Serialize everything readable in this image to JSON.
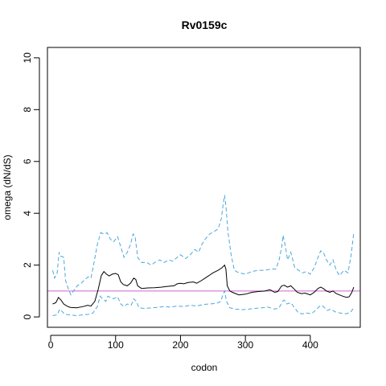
{
  "chart_data": {
    "type": "line",
    "title": "Rv0159c",
    "xlabel": "codon",
    "ylabel": "omega (dN/dS)",
    "xlim": [
      -5,
      477
    ],
    "ylim": [
      -0.4,
      10.4
    ],
    "x_ticks": [
      0,
      100,
      200,
      300,
      400
    ],
    "x_tick_labels": [
      "0",
      "100",
      "200",
      "300",
      "400"
    ],
    "y_ticks": [
      0,
      2,
      4,
      6,
      8,
      10
    ],
    "y_tick_labels": [
      "0",
      "2",
      "4",
      "6",
      "8",
      "10"
    ],
    "grid": false,
    "reference_line": {
      "y": 1.0,
      "color": "#cc66cc"
    },
    "series": [
      {
        "style": "solid",
        "color": "#000000",
        "points": [
          [
            3,
            0.5
          ],
          [
            8,
            0.55
          ],
          [
            12,
            0.75
          ],
          [
            16,
            0.65
          ],
          [
            20,
            0.5
          ],
          [
            25,
            0.42
          ],
          [
            30,
            0.37
          ],
          [
            40,
            0.35
          ],
          [
            50,
            0.4
          ],
          [
            57,
            0.45
          ],
          [
            62,
            0.42
          ],
          [
            68,
            0.6
          ],
          [
            73,
            1.05
          ],
          [
            78,
            1.6
          ],
          [
            82,
            1.75
          ],
          [
            86,
            1.65
          ],
          [
            90,
            1.58
          ],
          [
            95,
            1.65
          ],
          [
            100,
            1.68
          ],
          [
            104,
            1.63
          ],
          [
            108,
            1.35
          ],
          [
            112,
            1.25
          ],
          [
            118,
            1.2
          ],
          [
            123,
            1.3
          ],
          [
            128,
            1.5
          ],
          [
            131,
            1.45
          ],
          [
            134,
            1.2
          ],
          [
            140,
            1.1
          ],
          [
            150,
            1.12
          ],
          [
            160,
            1.13
          ],
          [
            170,
            1.15
          ],
          [
            180,
            1.18
          ],
          [
            190,
            1.2
          ],
          [
            195,
            1.28
          ],
          [
            200,
            1.3
          ],
          [
            205,
            1.28
          ],
          [
            212,
            1.33
          ],
          [
            220,
            1.35
          ],
          [
            225,
            1.3
          ],
          [
            232,
            1.4
          ],
          [
            238,
            1.5
          ],
          [
            244,
            1.6
          ],
          [
            250,
            1.7
          ],
          [
            258,
            1.8
          ],
          [
            264,
            1.9
          ],
          [
            268,
            2.0
          ],
          [
            270,
            1.85
          ],
          [
            272,
            1.2
          ],
          [
            276,
            1.0
          ],
          [
            280,
            0.95
          ],
          [
            285,
            0.9
          ],
          [
            290,
            0.85
          ],
          [
            300,
            0.88
          ],
          [
            310,
            0.95
          ],
          [
            320,
            0.98
          ],
          [
            330,
            1.0
          ],
          [
            338,
            1.05
          ],
          [
            345,
            0.95
          ],
          [
            350,
            0.98
          ],
          [
            356,
            1.2
          ],
          [
            360,
            1.22
          ],
          [
            365,
            1.15
          ],
          [
            370,
            1.2
          ],
          [
            375,
            1.08
          ],
          [
            380,
            0.95
          ],
          [
            386,
            0.9
          ],
          [
            392,
            0.92
          ],
          [
            400,
            0.85
          ],
          [
            406,
            0.95
          ],
          [
            412,
            1.1
          ],
          [
            416,
            1.15
          ],
          [
            420,
            1.1
          ],
          [
            425,
            1.0
          ],
          [
            430,
            0.95
          ],
          [
            435,
            1.0
          ],
          [
            440,
            0.9
          ],
          [
            450,
            0.8
          ],
          [
            456,
            0.75
          ],
          [
            460,
            0.78
          ],
          [
            464,
            0.95
          ],
          [
            467,
            1.15
          ]
        ]
      },
      {
        "style": "dashed",
        "color": "#4ba8dc",
        "points": [
          [
            3,
            1.8
          ],
          [
            6,
            1.5
          ],
          [
            10,
            1.7
          ],
          [
            13,
            2.5
          ],
          [
            15,
            2.35
          ],
          [
            20,
            2.3
          ],
          [
            23,
            1.4
          ],
          [
            27,
            1.1
          ],
          [
            31,
            0.85
          ],
          [
            35,
            1.0
          ],
          [
            41,
            1.2
          ],
          [
            47,
            1.3
          ],
          [
            53,
            1.45
          ],
          [
            58,
            1.55
          ],
          [
            62,
            1.5
          ],
          [
            66,
            2.0
          ],
          [
            72,
            2.8
          ],
          [
            77,
            3.25
          ],
          [
            83,
            3.2
          ],
          [
            87,
            3.25
          ],
          [
            92,
            3.0
          ],
          [
            97,
            2.9
          ],
          [
            103,
            3.1
          ],
          [
            108,
            2.7
          ],
          [
            113,
            2.3
          ],
          [
            118,
            2.5
          ],
          [
            123,
            2.8
          ],
          [
            127,
            3.2
          ],
          [
            130,
            3.1
          ],
          [
            134,
            2.3
          ],
          [
            140,
            2.1
          ],
          [
            148,
            2.1
          ],
          [
            155,
            2.0
          ],
          [
            160,
            2.1
          ],
          [
            168,
            2.2
          ],
          [
            175,
            2.1
          ],
          [
            182,
            2.2
          ],
          [
            188,
            2.15
          ],
          [
            195,
            2.3
          ],
          [
            200,
            2.4
          ],
          [
            208,
            2.25
          ],
          [
            215,
            2.4
          ],
          [
            222,
            2.6
          ],
          [
            228,
            2.5
          ],
          [
            233,
            2.8
          ],
          [
            238,
            3.0
          ],
          [
            245,
            3.2
          ],
          [
            252,
            3.3
          ],
          [
            258,
            3.4
          ],
          [
            263,
            3.8
          ],
          [
            266,
            4.4
          ],
          [
            268,
            4.7
          ],
          [
            270,
            4.3
          ],
          [
            273,
            3.3
          ],
          [
            278,
            2.4
          ],
          [
            283,
            1.8
          ],
          [
            290,
            1.7
          ],
          [
            300,
            1.65
          ],
          [
            310,
            1.75
          ],
          [
            320,
            1.8
          ],
          [
            330,
            1.8
          ],
          [
            340,
            1.85
          ],
          [
            347,
            1.85
          ],
          [
            352,
            2.2
          ],
          [
            356,
            2.7
          ],
          [
            358,
            3.15
          ],
          [
            361,
            2.8
          ],
          [
            365,
            2.2
          ],
          [
            370,
            2.5
          ],
          [
            376,
            1.9
          ],
          [
            382,
            1.8
          ],
          [
            388,
            1.7
          ],
          [
            394,
            1.75
          ],
          [
            400,
            1.65
          ],
          [
            406,
            1.9
          ],
          [
            412,
            2.3
          ],
          [
            416,
            2.55
          ],
          [
            420,
            2.5
          ],
          [
            425,
            2.2
          ],
          [
            430,
            2.0
          ],
          [
            435,
            2.2
          ],
          [
            440,
            1.8
          ],
          [
            445,
            1.6
          ],
          [
            452,
            1.8
          ],
          [
            458,
            1.7
          ],
          [
            463,
            2.4
          ],
          [
            467,
            3.25
          ]
        ]
      },
      {
        "style": "dashed",
        "color": "#4ba8dc",
        "points": [
          [
            3,
            0.05
          ],
          [
            10,
            0.08
          ],
          [
            14,
            0.3
          ],
          [
            18,
            0.2
          ],
          [
            22,
            0.1
          ],
          [
            30,
            0.08
          ],
          [
            40,
            0.05
          ],
          [
            50,
            0.08
          ],
          [
            58,
            0.1
          ],
          [
            65,
            0.15
          ],
          [
            72,
            0.4
          ],
          [
            76,
            0.8
          ],
          [
            80,
            0.7
          ],
          [
            85,
            0.6
          ],
          [
            88,
            0.8
          ],
          [
            92,
            0.75
          ],
          [
            97,
            0.7
          ],
          [
            103,
            0.78
          ],
          [
            108,
            0.5
          ],
          [
            113,
            0.4
          ],
          [
            118,
            0.5
          ],
          [
            124,
            0.45
          ],
          [
            128,
            0.7
          ],
          [
            132,
            0.6
          ],
          [
            136,
            0.35
          ],
          [
            145,
            0.33
          ],
          [
            155,
            0.35
          ],
          [
            165,
            0.37
          ],
          [
            175,
            0.4
          ],
          [
            185,
            0.38
          ],
          [
            195,
            0.42
          ],
          [
            205,
            0.4
          ],
          [
            215,
            0.45
          ],
          [
            225,
            0.42
          ],
          [
            235,
            0.48
          ],
          [
            245,
            0.5
          ],
          [
            255,
            0.52
          ],
          [
            262,
            0.6
          ],
          [
            266,
            0.9
          ],
          [
            268,
            1.0
          ],
          [
            271,
            0.6
          ],
          [
            276,
            0.35
          ],
          [
            285,
            0.3
          ],
          [
            295,
            0.28
          ],
          [
            305,
            0.3
          ],
          [
            315,
            0.33
          ],
          [
            325,
            0.35
          ],
          [
            335,
            0.38
          ],
          [
            345,
            0.3
          ],
          [
            352,
            0.35
          ],
          [
            357,
            0.6
          ],
          [
            360,
            0.65
          ],
          [
            364,
            0.5
          ],
          [
            370,
            0.55
          ],
          [
            376,
            0.35
          ],
          [
            382,
            0.15
          ],
          [
            388,
            0.12
          ],
          [
            395,
            0.15
          ],
          [
            402,
            0.12
          ],
          [
            410,
            0.3
          ],
          [
            416,
            0.45
          ],
          [
            420,
            0.4
          ],
          [
            426,
            0.25
          ],
          [
            432,
            0.3
          ],
          [
            438,
            0.2
          ],
          [
            446,
            0.15
          ],
          [
            455,
            0.12
          ],
          [
            462,
            0.18
          ],
          [
            467,
            0.35
          ]
        ]
      }
    ]
  }
}
